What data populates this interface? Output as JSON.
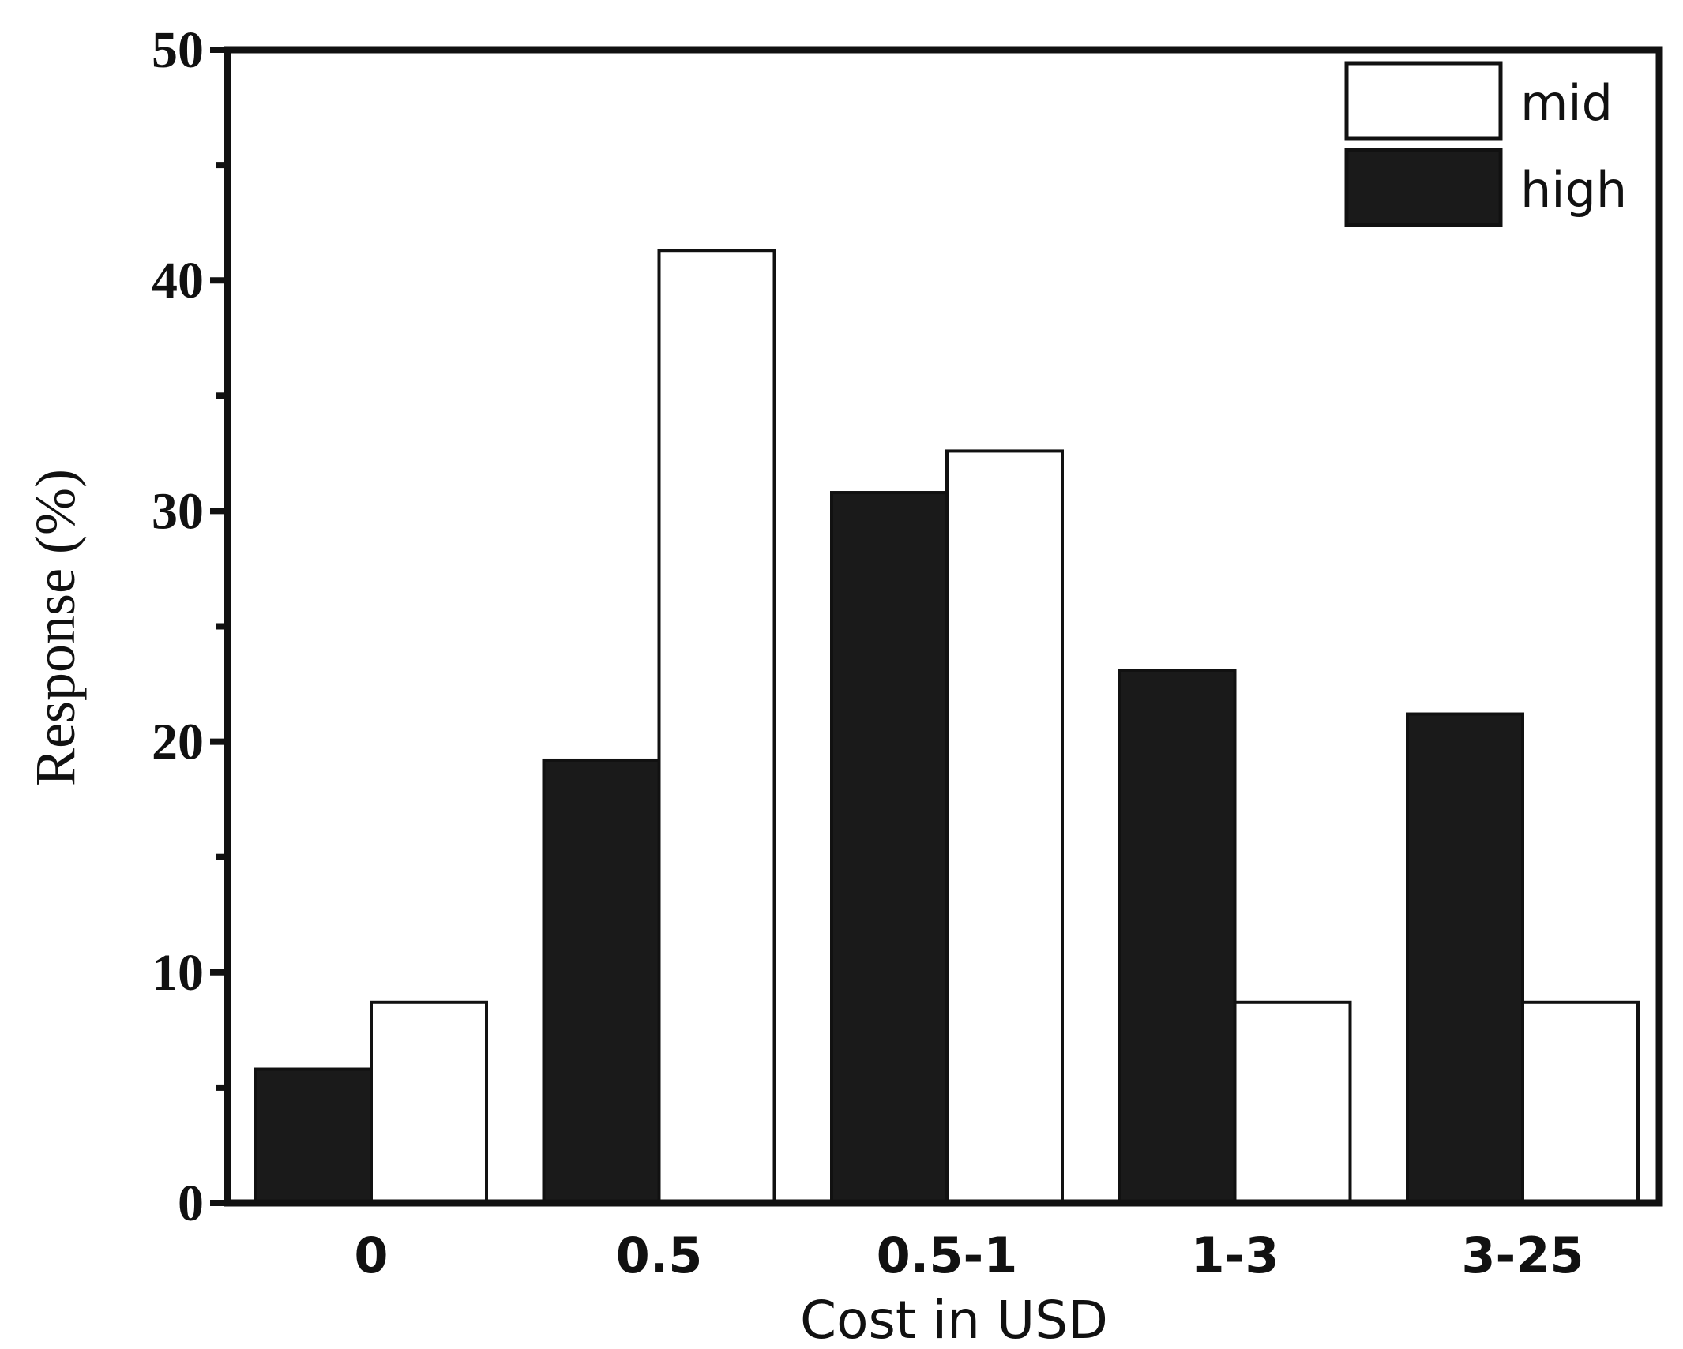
{
  "chart_data": {
    "type": "bar",
    "xlabel": "Cost in USD",
    "ylabel": "Response (%)",
    "categories": [
      "0",
      "0.5",
      "0.5-1",
      "1-3",
      "3-25"
    ],
    "series": [
      {
        "name": "high",
        "color": "#1a1a1a",
        "values": [
          5.8,
          19.2,
          30.8,
          23.1,
          21.2
        ]
      },
      {
        "name": "mid",
        "color": "#ffffff",
        "values": [
          8.7,
          41.3,
          32.6,
          8.7,
          8.7
        ]
      }
    ],
    "ylim": [
      0,
      50
    ],
    "yticks": [
      0,
      10,
      20,
      30,
      40,
      50
    ],
    "grid": false,
    "legend": {
      "position": "top-right",
      "order": [
        "mid",
        "high"
      ]
    }
  }
}
